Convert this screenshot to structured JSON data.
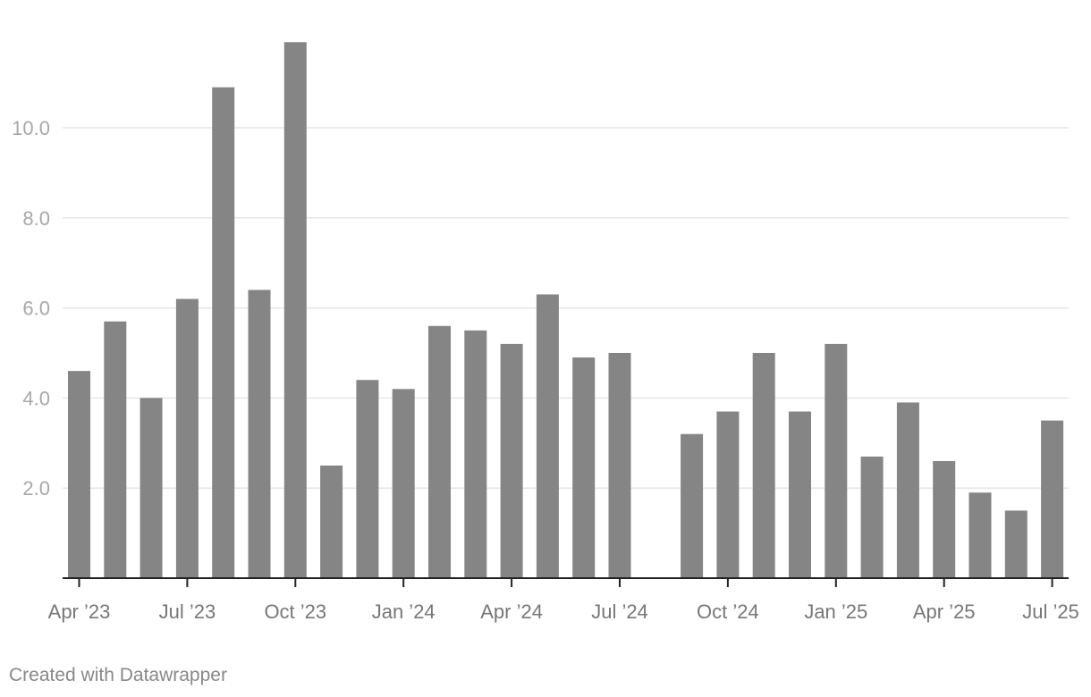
{
  "chart_data": {
    "type": "bar",
    "title": "",
    "xlabel": "",
    "ylabel": "",
    "x": [
      "2023-04",
      "2023-05",
      "2023-06",
      "2023-07",
      "2023-08",
      "2023-09",
      "2023-10",
      "2023-11",
      "2023-12",
      "2024-01",
      "2024-02",
      "2024-03",
      "2024-04",
      "2024-05",
      "2024-06",
      "2024-07",
      "2024-08",
      "2024-09",
      "2024-10",
      "2024-11",
      "2024-12",
      "2025-01",
      "2025-02",
      "2025-03",
      "2025-04",
      "2025-05",
      "2025-06",
      "2025-07"
    ],
    "values": [
      4.6,
      5.7,
      4.0,
      6.2,
      10.9,
      6.4,
      11.9,
      2.5,
      4.4,
      4.2,
      5.6,
      5.5,
      5.2,
      6.3,
      4.9,
      5.0,
      null,
      3.2,
      3.7,
      5.0,
      3.7,
      5.2,
      2.7,
      3.9,
      2.6,
      1.9,
      1.5,
      3.5
    ],
    "ylim": [
      0,
      12
    ],
    "y_ticks": [
      {
        "value": 2,
        "label": "2.0"
      },
      {
        "value": 4,
        "label": "4.0"
      },
      {
        "value": 6,
        "label": "6.0"
      },
      {
        "value": 8,
        "label": "8.0"
      },
      {
        "value": 10,
        "label": "10.0"
      }
    ],
    "x_ticks": [
      {
        "at": "2023-04",
        "label": "Apr ’23"
      },
      {
        "at": "2023-07",
        "label": "Jul ’23"
      },
      {
        "at": "2023-10",
        "label": "Oct ’23"
      },
      {
        "at": "2024-01",
        "label": "Jan ’24"
      },
      {
        "at": "2024-04",
        "label": "Apr ’24"
      },
      {
        "at": "2024-07",
        "label": "Jul ’24"
      },
      {
        "at": "2024-10",
        "label": "Oct ’24"
      },
      {
        "at": "2025-01",
        "label": "Jan ’25"
      },
      {
        "at": "2025-04",
        "label": "Apr ’25"
      },
      {
        "at": "2025-07",
        "label": "Jul ’25"
      }
    ],
    "grid": true,
    "bar_color": "#858585",
    "gridline_color": "#e6e6e6",
    "axis_color": "#222222"
  },
  "footer": {
    "credit": "Created with Datawrapper"
  }
}
